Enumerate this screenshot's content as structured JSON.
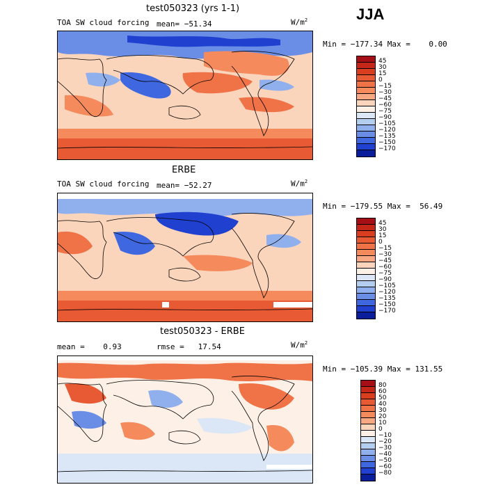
{
  "season": "JJA",
  "panels": [
    {
      "title": "test050323 (yrs 1-1)",
      "field": "TOA SW cloud forcing",
      "stats_left": "",
      "stats_mid": "mean= −51.34",
      "units": "W/m",
      "units_sup": "2",
      "minmax": "Min = −177.34 Max =    0.00"
    },
    {
      "title": "ERBE",
      "field": "TOA SW cloud forcing",
      "stats_left": "",
      "stats_mid": "mean= −52.27",
      "units": "W/m",
      "units_sup": "2",
      "minmax": "Min = −179.55 Max =  56.49"
    },
    {
      "title": "test050323 - ERBE",
      "field": "",
      "stats_left": "mean =    0.93",
      "stats_mid": "rmse =   17.54",
      "units": "W/m",
      "units_sup": "2",
      "minmax": "Min = −105.39 Max = 131.55"
    }
  ],
  "chart_data": [
    {
      "type": "heatmap",
      "title": "test050323 (yrs 1-1)",
      "subtitle": "TOA SW cloud forcing",
      "mean": -51.34,
      "min": -177.34,
      "max": 0.0,
      "units": "W/m2",
      "legend_levels": [
        "45",
        "30",
        "15",
        "0",
        "−15",
        "−30",
        "−45",
        "−60",
        "−75",
        "−90",
        "−105",
        "−120",
        "−135",
        "−150",
        "−170"
      ],
      "legend_colors": [
        "#a50f15",
        "#c42718",
        "#d93f1f",
        "#e85a33",
        "#f07347",
        "#f58a5c",
        "#f8a882",
        "#fbd4bc",
        "#fdf0e6",
        "#dbe7f6",
        "#b4cef0",
        "#8fb0ec",
        "#6a8ee6",
        "#3f68e0",
        "#2040d0",
        "#0a1e9c"
      ],
      "legend_position": "right"
    },
    {
      "type": "heatmap",
      "title": "ERBE",
      "subtitle": "TOA SW cloud forcing",
      "mean": -52.27,
      "min": -179.55,
      "max": 56.49,
      "units": "W/m2",
      "legend_levels": [
        "45",
        "30",
        "15",
        "0",
        "−15",
        "−30",
        "−45",
        "−60",
        "−75",
        "−90",
        "−105",
        "−120",
        "−135",
        "−150",
        "−170"
      ],
      "legend_colors": [
        "#a50f15",
        "#c42718",
        "#d93f1f",
        "#e85a33",
        "#f07347",
        "#f58a5c",
        "#f8a882",
        "#fbd4bc",
        "#fdf0e6",
        "#dbe7f6",
        "#b4cef0",
        "#8fb0ec",
        "#6a8ee6",
        "#3f68e0",
        "#2040d0",
        "#0a1e9c"
      ],
      "legend_position": "right"
    },
    {
      "type": "heatmap",
      "title": "test050323 - ERBE",
      "mean": 0.93,
      "rmse": 17.54,
      "min": -105.39,
      "max": 131.55,
      "units": "W/m2",
      "legend_levels": [
        "80",
        "60",
        "50",
        "40",
        "30",
        "20",
        "10",
        "0",
        "−10",
        "−20",
        "−30",
        "−40",
        "−50",
        "−60",
        "−80"
      ],
      "legend_colors": [
        "#a50f15",
        "#c42718",
        "#d93f1f",
        "#e85a33",
        "#f07347",
        "#f58a5c",
        "#f8a882",
        "#fbd4bc",
        "#fdf0e6",
        "#dbe7f6",
        "#b4cef0",
        "#8fb0ec",
        "#6a8ee6",
        "#3f68e0",
        "#2040d0",
        "#0a1e9c"
      ],
      "legend_position": "right"
    }
  ]
}
